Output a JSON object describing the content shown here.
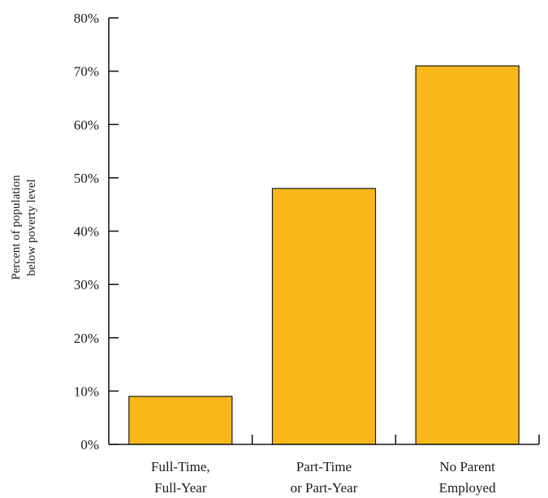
{
  "chart_data": {
    "type": "bar",
    "categories": [
      [
        "Full-Time,",
        "Full-Year"
      ],
      [
        "Part-Time",
        "or Part-Year"
      ],
      [
        "No Parent",
        "Employed"
      ]
    ],
    "values": [
      9,
      48,
      71
    ],
    "ylabel": [
      "Percent of population",
      "below poverty level"
    ],
    "ylim": [
      0,
      80
    ],
    "yticks": [
      "0%",
      "10%",
      "20%",
      "30%",
      "40%",
      "50%",
      "60%",
      "70%",
      "80%"
    ],
    "bar_color": "#F9B71A",
    "grid": false
  }
}
